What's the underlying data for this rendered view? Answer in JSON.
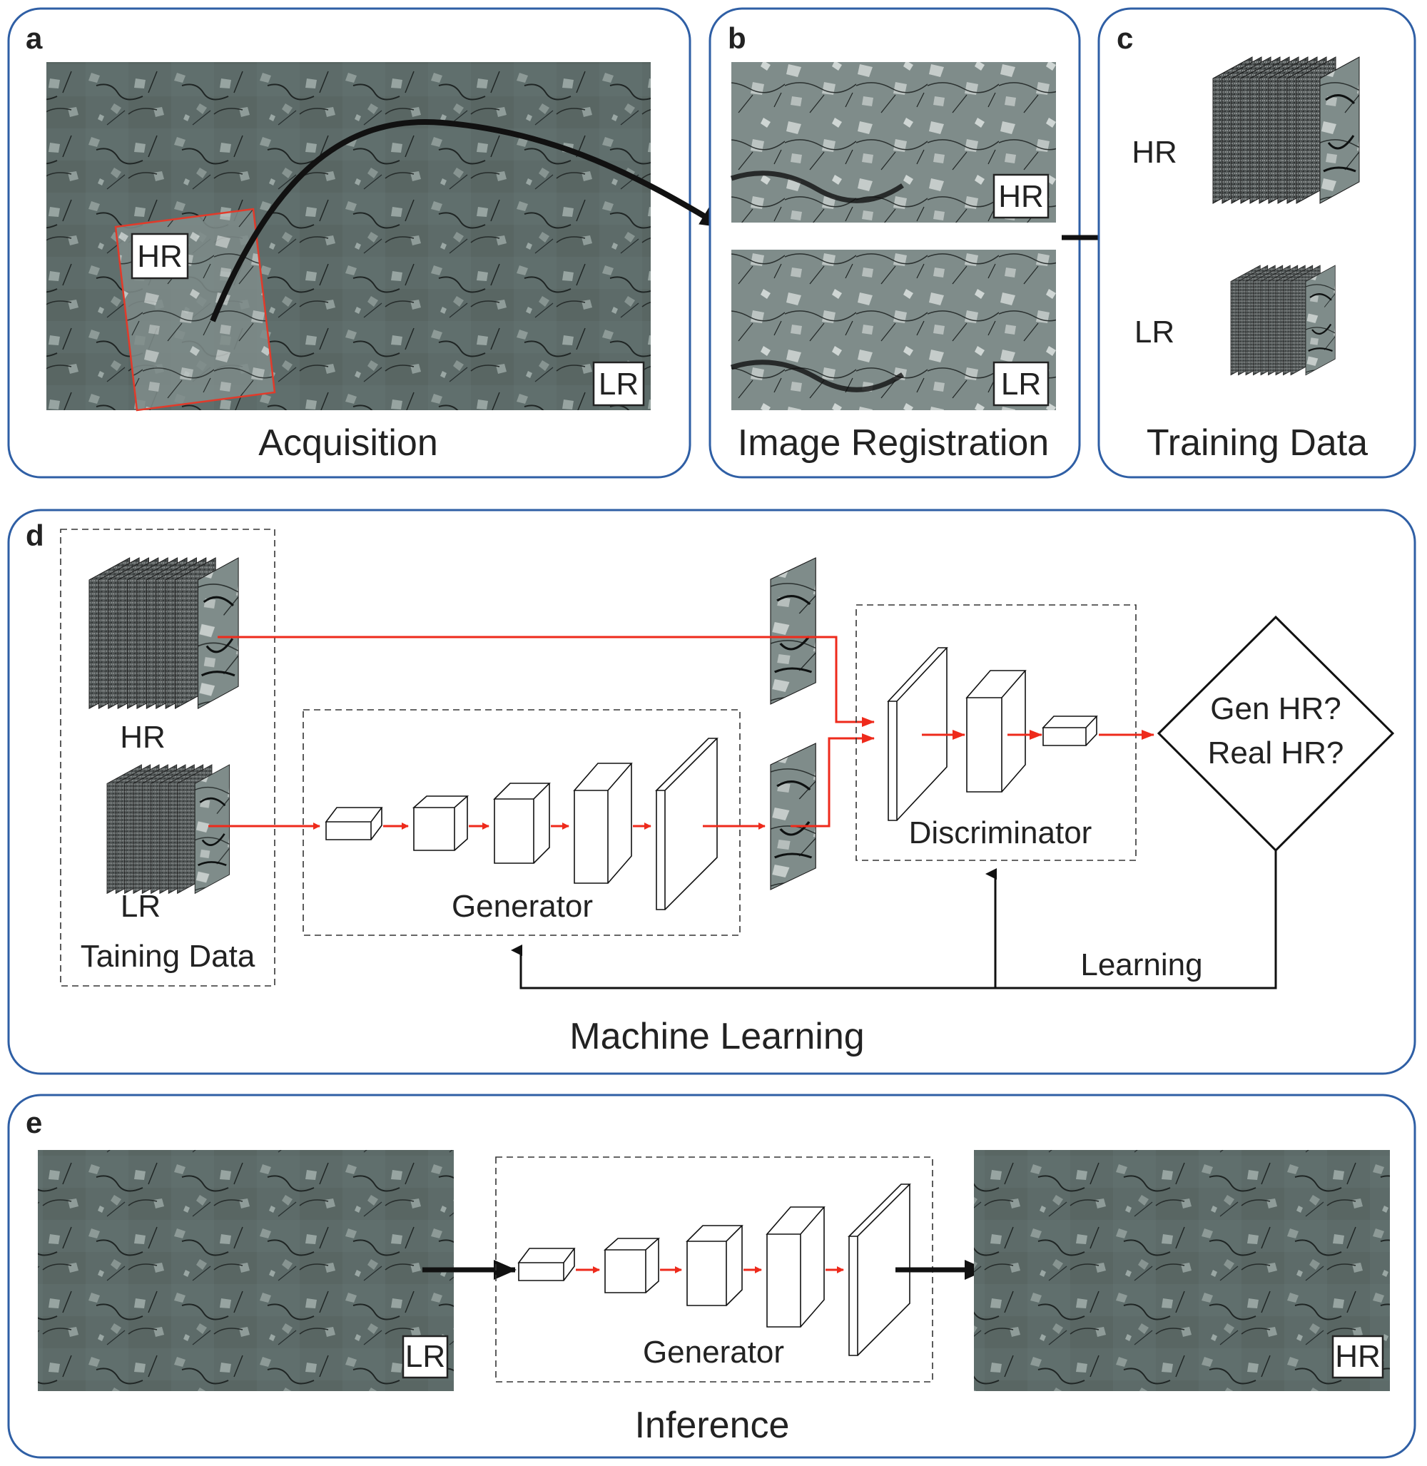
{
  "panels": {
    "a": {
      "label": "a",
      "title": "Acquisition",
      "hr_tag": "HR",
      "lr_tag": "LR"
    },
    "b": {
      "label": "b",
      "title": "Image Registration",
      "hr_tag": "HR",
      "lr_tag": "LR"
    },
    "c": {
      "label": "c",
      "title": "Training Data",
      "hr_label": "HR",
      "lr_label": "LR"
    },
    "d": {
      "label": "d",
      "title": "Machine Learning",
      "hr_label": "HR",
      "lr_label": "LR",
      "training_label": "Taining Data",
      "generator_label": "Generator",
      "discriminator_label": "Discriminator",
      "decision_line1": "Gen HR?",
      "decision_line2": "Real HR?",
      "learning_label": "Learning"
    },
    "e": {
      "label": "e",
      "title": "Inference",
      "generator_label": "Generator",
      "lr_tag": "LR",
      "hr_tag": "HR"
    }
  },
  "colors": {
    "panel_border": "#2f5fa5",
    "arrow_red": "#ee2a1b",
    "roi_red": "#e23a2a",
    "rock_base": "#5d6b69"
  }
}
